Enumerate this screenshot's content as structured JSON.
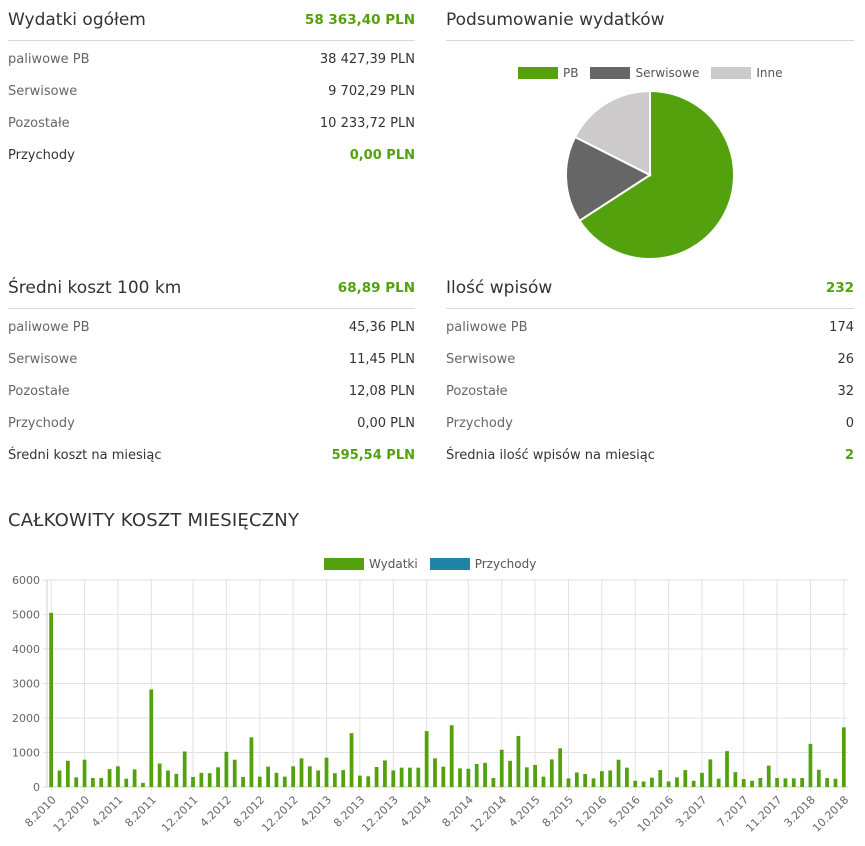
{
  "expenses_total": {
    "title": "Wydatki ogółem",
    "total": "58 363,40 PLN",
    "rows": [
      {
        "label": "paliwowe PB",
        "value": "38 427,39 PLN"
      },
      {
        "label": "Serwisowe",
        "value": "9 702,29 PLN"
      },
      {
        "label": "Pozostałe",
        "value": "10 233,72 PLN"
      },
      {
        "label": "Przychody",
        "value": "0,00 PLN"
      }
    ]
  },
  "summary": {
    "title": "Podsumowanie wydatków",
    "legend": [
      {
        "name": "PB",
        "color": "#52a10d"
      },
      {
        "name": "Serwisowe",
        "color": "#666666"
      },
      {
        "name": "Inne",
        "color": "#cccaca"
      }
    ]
  },
  "avg_cost": {
    "title": "Średni koszt 100 km",
    "total": "68,89 PLN",
    "rows": [
      {
        "label": "paliwowe PB",
        "value": "45,36 PLN"
      },
      {
        "label": "Serwisowe",
        "value": "11,45 PLN"
      },
      {
        "label": "Pozostałe",
        "value": "12,08 PLN"
      },
      {
        "label": "Przychody",
        "value": "0,00 PLN"
      },
      {
        "label": "Średni koszt na miesiąc",
        "value": "595,54 PLN"
      }
    ]
  },
  "entries": {
    "title": "Ilość wpisów",
    "total": "232",
    "rows": [
      {
        "label": "paliwowe PB",
        "value": "174"
      },
      {
        "label": "Serwisowe",
        "value": "26"
      },
      {
        "label": "Pozostałe",
        "value": "32"
      },
      {
        "label": "Przychody",
        "value": "0"
      },
      {
        "label": "Średnia ilość wpisów na miesiąc",
        "value": "2"
      }
    ]
  },
  "monthly": {
    "title": "CAŁKOWITY KOSZT MIESIĘCZNY"
  },
  "chart_data": [
    {
      "type": "pie",
      "title": "Podsumowanie wydatków",
      "labels": [
        "PB",
        "Serwisowe",
        "Inne"
      ],
      "values": [
        38427.39,
        9702.29,
        10233.72
      ],
      "colors": [
        "#52a10d",
        "#666666",
        "#cccaca"
      ],
      "legend": "top"
    },
    {
      "type": "bar",
      "title": "CAŁKOWITY KOSZT MIESIĘCZNY",
      "series": [
        {
          "name": "Wydatki",
          "color": "#52a10d",
          "values": [
            5050,
            480,
            760,
            280,
            790,
            260,
            260,
            520,
            600,
            240,
            510,
            120,
            2830,
            680,
            480,
            380,
            1030,
            290,
            410,
            400,
            570,
            1020,
            790,
            290,
            1440,
            300,
            590,
            410,
            300,
            600,
            830,
            600,
            480,
            850,
            400,
            490,
            1560,
            330,
            310,
            580,
            770,
            480,
            560,
            560,
            560,
            1620,
            830,
            590,
            1790,
            540,
            530,
            670,
            700,
            260,
            1080,
            760,
            1480,
            570,
            640,
            300,
            800,
            1120,
            250,
            420,
            380,
            250,
            460,
            480,
            790,
            560,
            180,
            160,
            270,
            490,
            160,
            280,
            490,
            180,
            410,
            800,
            240,
            1040,
            430,
            230,
            180,
            260,
            620,
            260,
            250,
            250,
            260,
            1250,
            500,
            260,
            240,
            1730
          ]
        },
        {
          "name": "Przychody",
          "color": "#2083a8",
          "values": [
            0,
            0,
            0,
            0,
            0,
            0,
            0,
            0,
            0,
            0,
            0,
            0,
            0,
            0,
            0,
            0,
            0,
            0,
            0,
            0,
            0,
            0,
            0,
            0,
            0,
            0,
            0,
            0,
            0,
            0,
            0,
            0,
            0,
            0,
            0,
            0,
            0,
            0,
            0,
            0,
            0,
            0,
            0,
            0,
            0,
            0,
            0,
            0,
            0,
            0,
            0,
            0,
            0,
            0,
            0,
            0,
            0,
            0,
            0,
            0,
            0,
            0,
            0,
            0,
            0,
            0,
            0,
            0,
            0,
            0,
            0,
            0,
            0,
            0,
            0,
            0,
            0,
            0,
            0,
            0,
            0,
            0,
            0,
            0,
            0,
            0,
            0,
            0,
            0,
            0,
            0,
            0,
            0,
            0,
            0,
            0,
            0,
            0,
            0,
            0,
            0
          ]
        }
      ],
      "tick_labels": [
        "8.2010",
        "12.2010",
        "4.2011",
        "8.2011",
        "12.2011",
        "4.2012",
        "8.2012",
        "12.2012",
        "4.2013",
        "8.2013",
        "12.2013",
        "4.2014",
        "8.2014",
        "12.2014",
        "4.2015",
        "8.2015",
        "1.2016",
        "5.2016",
        "10.2016",
        "3.2017",
        "7.2017",
        "11.2017",
        "3.2018",
        "10.2018"
      ],
      "ylim": [
        0,
        6000
      ],
      "yticks": [
        0,
        1000,
        2000,
        3000,
        4000,
        5000,
        6000
      ],
      "grid": true,
      "legend": "top"
    }
  ]
}
